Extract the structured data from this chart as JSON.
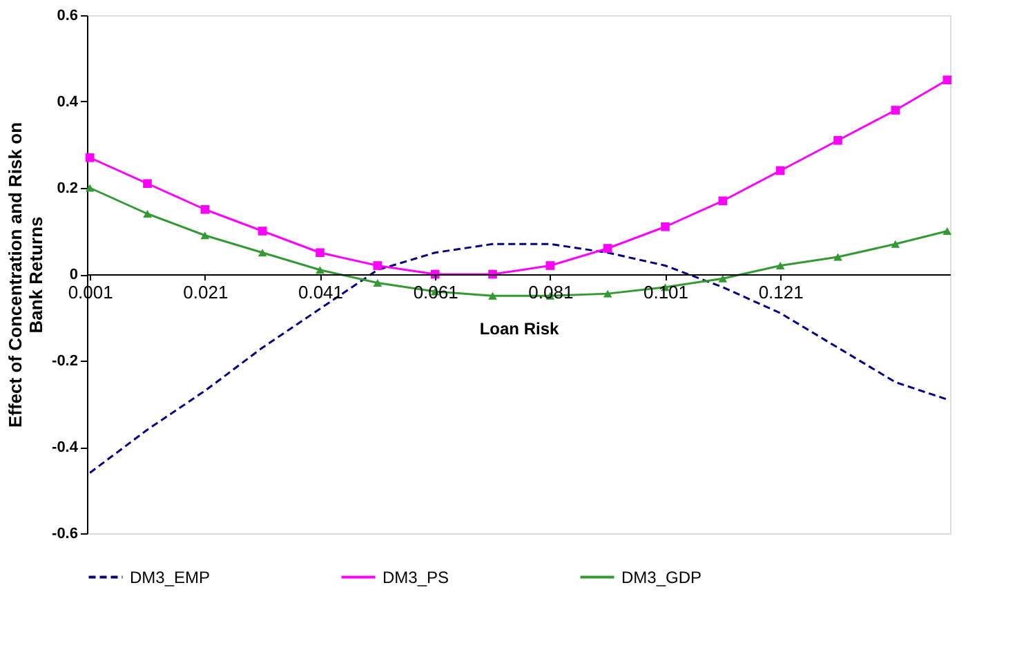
{
  "chart_data": {
    "type": "line",
    "ylabel": "Effect of Concentration and Risk on Bank Returns",
    "xlabel": "Loan Risk",
    "x": [
      0.001,
      0.011,
      0.021,
      0.031,
      0.041,
      0.051,
      0.061,
      0.071,
      0.081,
      0.091,
      0.101,
      0.111,
      0.121,
      0.131,
      0.141,
      0.15
    ],
    "series": [
      {
        "name": "DM3_EMP",
        "color": "#000080",
        "line_style": "dashed",
        "marker": "none",
        "values": [
          -0.46,
          -0.36,
          -0.27,
          -0.17,
          -0.08,
          0.01,
          0.05,
          0.07,
          0.07,
          0.05,
          0.02,
          -0.03,
          -0.09,
          -0.17,
          -0.25,
          -0.29
        ]
      },
      {
        "name": "DM3_PS",
        "color": "#ff00ff",
        "line_style": "solid",
        "marker": "square",
        "values": [
          0.27,
          0.21,
          0.15,
          0.1,
          0.05,
          0.02,
          0.0,
          0.0,
          0.02,
          0.06,
          0.11,
          0.17,
          0.24,
          0.31,
          0.38,
          0.45
        ]
      },
      {
        "name": "DM3_GDP",
        "color": "#339933",
        "line_style": "solid",
        "marker": "triangle",
        "values": [
          0.2,
          0.14,
          0.09,
          0.05,
          0.01,
          -0.02,
          -0.04,
          -0.05,
          -0.05,
          -0.045,
          -0.03,
          -0.01,
          0.02,
          0.04,
          0.07,
          0.1
        ]
      }
    ],
    "xlim": [
      0.0005,
      0.1505
    ],
    "xticks": [
      0.001,
      0.021,
      0.041,
      0.061,
      0.081,
      0.101,
      0.121
    ],
    "ylim": [
      -0.6,
      0.6
    ],
    "yticks": [
      -0.6,
      -0.4,
      -0.2,
      0,
      0.2,
      0.4,
      0.6
    ],
    "grid": false,
    "legend": "bottom"
  }
}
